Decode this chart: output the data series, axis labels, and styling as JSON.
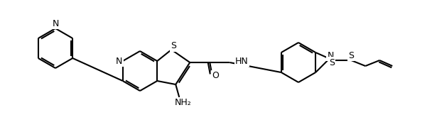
{
  "bg_color": "#ffffff",
  "line_color": "#000000",
  "line_width": 1.5,
  "bond_width": 1.5,
  "figsize": [
    6.08,
    1.86
  ],
  "dpi": 100,
  "title": "",
  "labels": {
    "N_py": "N",
    "N_thienopy": "N",
    "S_thienopy": "S",
    "NH": "HN",
    "N_btz": "N",
    "S_btz": "S",
    "S_allyl": "S",
    "O": "O",
    "NH2": "NH₂"
  }
}
